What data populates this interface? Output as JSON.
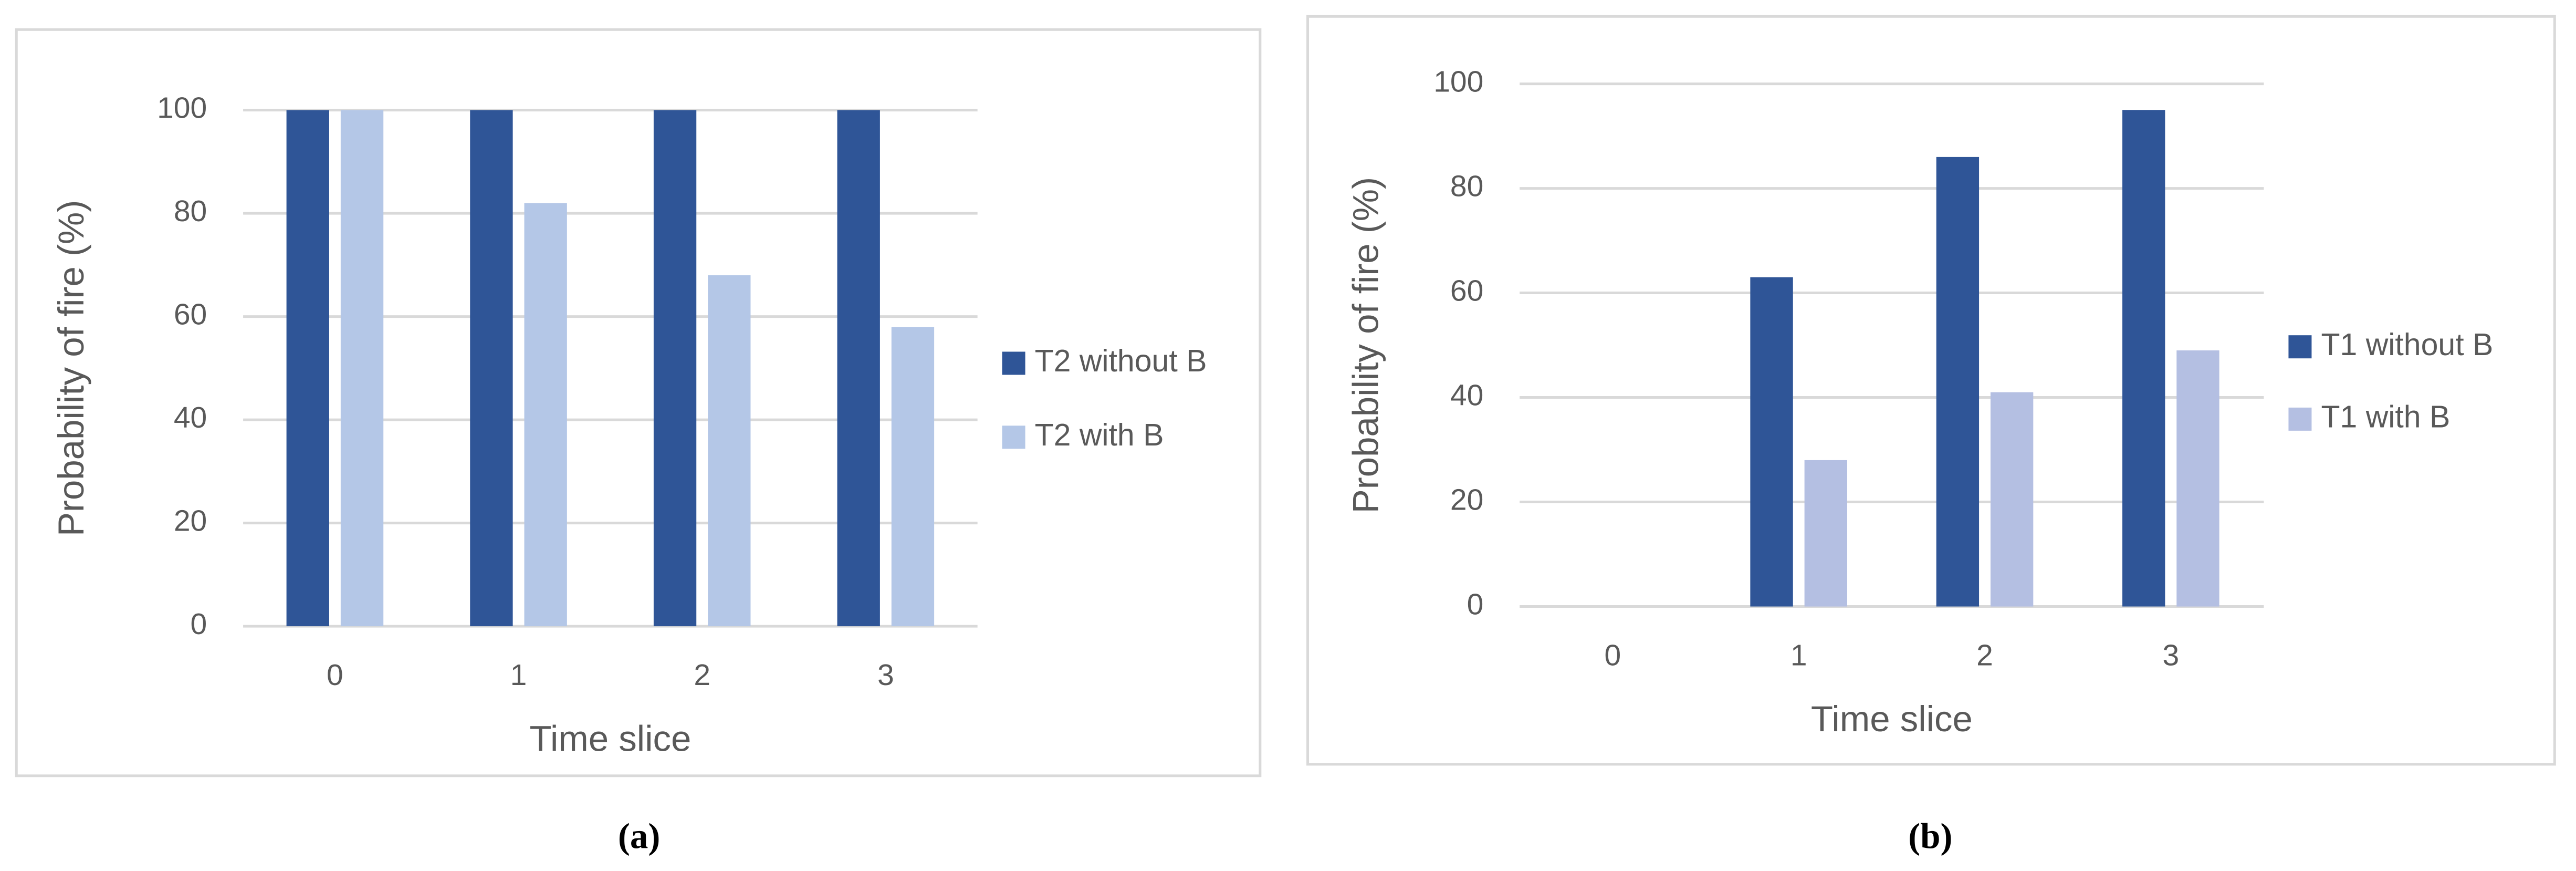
{
  "chart_data": [
    {
      "type": "bar",
      "x_label": "Time slice",
      "y_label": "Probability of fire (%)",
      "caption": "(a)",
      "categories": [
        "0",
        "1",
        "2",
        "3"
      ],
      "series": [
        {
          "name": "T2 without B",
          "color": "#2f5597",
          "values": [
            100,
            100,
            100,
            100
          ]
        },
        {
          "name": "T2 with B",
          "color": "#b4c7e7",
          "values": [
            100,
            82,
            68,
            58
          ]
        }
      ],
      "ylim": [
        0,
        100
      ],
      "yticks": [
        0,
        20,
        40,
        60,
        80,
        100
      ],
      "grid": true,
      "legend": "right"
    },
    {
      "type": "bar",
      "x_label": "Time slice",
      "y_label": "Probability of fire (%)",
      "caption": "(b)",
      "categories": [
        "0",
        "1",
        "2",
        "3"
      ],
      "series": [
        {
          "name": "T1 without B",
          "color": "#2f5597",
          "values": [
            0,
            63,
            86,
            95
          ]
        },
        {
          "name": "T1 with B",
          "color": "#b4bfe2",
          "values": [
            0,
            28,
            41,
            49
          ]
        }
      ],
      "ylim": [
        0,
        100
      ],
      "yticks": [
        0,
        20,
        40,
        60,
        80,
        100
      ],
      "grid": true,
      "legend": "right"
    }
  ]
}
